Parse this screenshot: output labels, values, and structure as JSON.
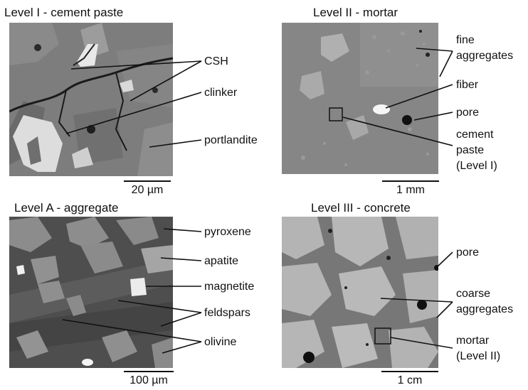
{
  "panels": {
    "level1": {
      "title": "Level I - cement paste",
      "labels": {
        "csh": "CSH",
        "clinker": "clinker",
        "portlandite": "portlandite"
      },
      "scale": "20 µm"
    },
    "level2": {
      "title": "Level II - mortar",
      "labels": {
        "fine_aggregates": [
          "fine",
          "aggregates"
        ],
        "fiber": "fiber",
        "pore": "pore",
        "cement_paste": [
          "cement",
          "paste",
          "(Level I)"
        ]
      },
      "scale": "1 mm"
    },
    "levelA": {
      "title": "Level A - aggregate",
      "labels": {
        "pyroxene": "pyroxene",
        "apatite": "apatite",
        "magnetite": "magnetite",
        "feldspars": "feldspars",
        "olivine": "olivine"
      },
      "scale": "100 µm"
    },
    "level3": {
      "title": "Level III - concrete",
      "labels": {
        "pore": "pore",
        "coarse_aggregates": [
          "coarse",
          "aggregates"
        ],
        "mortar": [
          "mortar",
          "(Level II)"
        ]
      },
      "scale": "1 cm"
    }
  },
  "colors": {
    "text": "#111111",
    "line": "#111111",
    "background": "#ffffff"
  }
}
